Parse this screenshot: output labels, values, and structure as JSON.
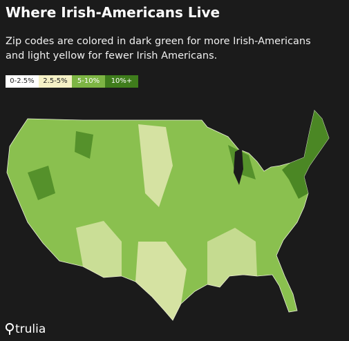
{
  "header": {
    "title": "Where Irish-Americans Live",
    "subtitle_lines": [
      "Zip codes are colored in dark green for more Irish-Americans",
      "and light yellow for fewer Irish Americans."
    ]
  },
  "legend": {
    "items": [
      {
        "label": "0-2.5%",
        "color": "#ffffff",
        "text_color": "#222222"
      },
      {
        "label": "2.5-5%",
        "color": "#f5f1c6",
        "text_color": "#222222"
      },
      {
        "label": "5-10%",
        "color": "#7db544",
        "text_color": "#ffffff"
      },
      {
        "label": "10%+",
        "color": "#3f7d1c",
        "text_color": "#ffffff"
      }
    ]
  },
  "logo": {
    "text": "trulia"
  }
}
